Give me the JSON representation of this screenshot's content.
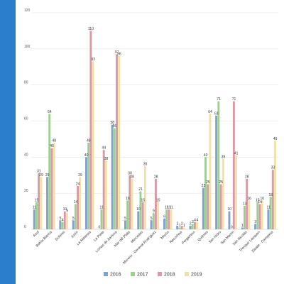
{
  "chart_data": {
    "type": "bar",
    "title": "",
    "xlabel": "",
    "ylabel": "",
    "ylim": [
      0,
      120
    ],
    "yticks": [
      0,
      20,
      40,
      60,
      80,
      100,
      120
    ],
    "grid": true,
    "legend_position": "bottom",
    "categories": [
      "Azul",
      "Bahía Blanca",
      "Dolores",
      "Junín",
      "La Matanza",
      "La Plata",
      "Lomas de Zamora",
      "Mar del Plata",
      "Mercedes",
      "Moreno - General Rodríguez",
      "Morón",
      "Necochea",
      "Pergamino",
      "Quilmes",
      "San Isidro",
      "San Martín",
      "San Nicolás",
      "Trenque Lauquen",
      "Zárate - Campana"
    ],
    "series": [
      {
        "name": "2016",
        "color": "#7fa3c9",
        "values": [
          11,
          29,
          5,
          5,
          40,
          0,
          58,
          5,
          10,
          5,
          6,
          2,
          2,
          23,
          63,
          10,
          1,
          3,
          11
        ]
      },
      {
        "name": "2017",
        "color": "#9dce93",
        "values": [
          15,
          64,
          4,
          14,
          48,
          11,
          56,
          16,
          21,
          9,
          11,
          1,
          3,
          40,
          71,
          0,
          13,
          15,
          18
        ]
      },
      {
        "name": "2018",
        "color": "#d99aa3",
        "values": [
          31,
          45,
          10,
          24,
          110,
          44,
          97,
          30,
          15,
          28,
          11,
          2,
          4,
          25,
          25,
          71,
          28,
          14,
          33
        ]
      },
      {
        "name": "2019",
        "color": "#f2e0a6",
        "values": [
          29,
          48,
          9,
          29,
          93,
          38,
          96,
          28,
          35,
          15,
          11,
          1,
          4,
          64,
          39,
          41,
          16,
          16,
          49
        ]
      }
    ]
  }
}
